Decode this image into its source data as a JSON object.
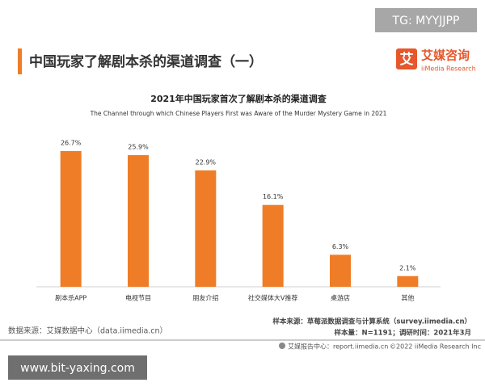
{
  "watermark_top": "TG: MYYJJPP",
  "header": {
    "title": "中国玩家了解剧本杀的渠道调查（一）",
    "logo_mark": "艾",
    "logo_cn": "艾媒咨询",
    "logo_en": "iiMedia Research"
  },
  "chart_data": {
    "type": "bar",
    "title": "2021年中国玩家首次了解剧本杀的渠道调查",
    "subtitle": "The Channel through which Chinese Players First was Aware of the Murder Mystery Game in 2021",
    "categories": [
      "剧本杀APP",
      "电视节目",
      "朋友介绍",
      "社交媒体大V推荐",
      "桌游店",
      "其他"
    ],
    "values": [
      26.7,
      25.9,
      22.9,
      16.1,
      6.3,
      2.1
    ],
    "value_labels": [
      "26.7%",
      "25.9%",
      "22.9%",
      "16.1%",
      "6.3%",
      "2.1%"
    ],
    "color": "#ef7d27",
    "grid": false
  },
  "footer": {
    "source": "数据来源：艾媒数据中心（data.iimedia.cn）",
    "sample_source": "样本来源：草莓派数据调查与计算系统（survey.iimedia.cn）",
    "sample_size": "样本量：N=1191；调研时间：2021年3月",
    "report_center": "艾媒报告中心：report.iimedia.cn",
    "copyright": "©2022  iiMedia Research  Inc"
  },
  "watermark_bottom": "www.bit-yaxing.com"
}
